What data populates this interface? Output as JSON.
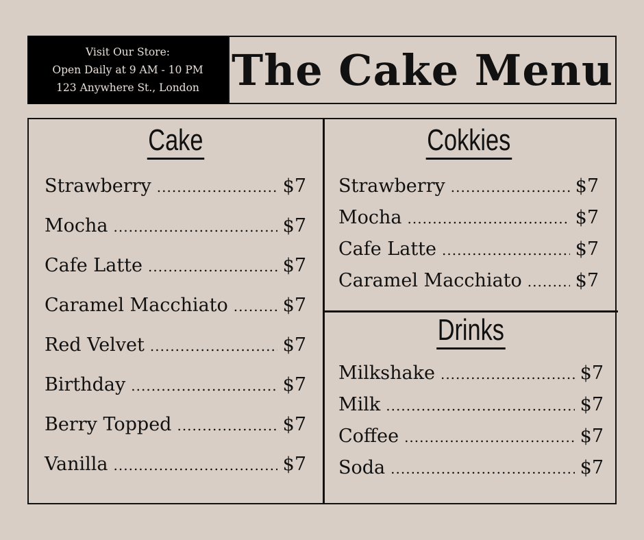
{
  "store": {
    "line1": "Visit Our Store:",
    "line2": "Open Daily at 9 AM - 10 PM",
    "line3": "123 Anywhere St., London"
  },
  "title": "The Cake Menu",
  "dots": "....................................................................................................",
  "sections": {
    "cake": {
      "heading": "Cake",
      "items": [
        {
          "name": "Strawberry",
          "price": "$7"
        },
        {
          "name": "Mocha",
          "price": "$7"
        },
        {
          "name": "Cafe Latte",
          "price": "$7"
        },
        {
          "name": "Caramel Macchiato",
          "price": "$7"
        },
        {
          "name": "Red Velvet",
          "price": "$7"
        },
        {
          "name": "Birthday",
          "price": "$7"
        },
        {
          "name": "Berry Topped",
          "price": "$7"
        },
        {
          "name": "Vanilla",
          "price": "$7"
        }
      ]
    },
    "cookies": {
      "heading": "Cokkies",
      "items": [
        {
          "name": "Strawberry",
          "price": "$7"
        },
        {
          "name": "Mocha",
          "price": "$7"
        },
        {
          "name": "Cafe Latte",
          "price": "$7"
        },
        {
          "name": "Caramel Macchiato",
          "price": "$7"
        }
      ]
    },
    "drinks": {
      "heading": "Drinks",
      "items": [
        {
          "name": "Milkshake",
          "price": "$7"
        },
        {
          "name": "Milk",
          "price": "$7"
        },
        {
          "name": "Coffee",
          "price": "$7"
        },
        {
          "name": "Soda",
          "price": "$7"
        }
      ]
    }
  },
  "colors": {
    "background": "#d9cec5",
    "ink": "#111111",
    "store_box": "#000000"
  }
}
